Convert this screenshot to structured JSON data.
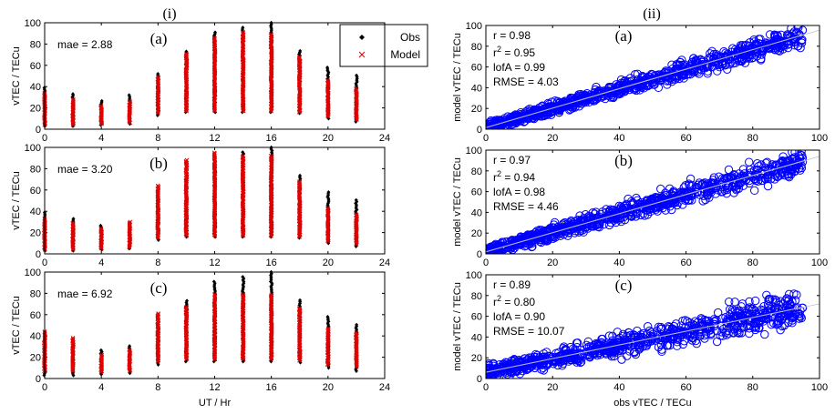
{
  "section_labels": {
    "left": "(i)",
    "right": "(ii)"
  },
  "chart_data": [
    {
      "type": "scatter",
      "panel": "(i)(a)",
      "sublabel": "(a)",
      "annotation": "mae = 2.88",
      "xlabel": "",
      "ylabel": "vTEC / TECu",
      "xlim": [
        0,
        24
      ],
      "ylim": [
        0,
        100
      ],
      "xticks": [
        0,
        4,
        8,
        12,
        16,
        20,
        24
      ],
      "yticks": [
        0,
        20,
        40,
        60,
        80,
        100
      ],
      "legend": {
        "placement": "top-right",
        "entries": [
          "Obs",
          "Model"
        ]
      },
      "series": [
        {
          "name": "Obs",
          "marker": "filled-diamond",
          "color": "#000000",
          "hours": [
            0,
            2,
            4,
            6,
            8,
            10,
            12,
            14,
            16,
            18,
            20,
            22
          ],
          "min": [
            3,
            3,
            4,
            5,
            13,
            16,
            16,
            16,
            16,
            15,
            10,
            7
          ],
          "max": [
            39,
            34,
            27,
            33,
            53,
            74,
            92,
            96,
            100,
            74,
            58,
            51
          ]
        },
        {
          "name": "Model",
          "marker": "x",
          "color": "#e00000",
          "hours": [
            0,
            2,
            4,
            6,
            8,
            10,
            12,
            14,
            16,
            18,
            20,
            22
          ],
          "min": [
            4,
            4,
            5,
            6,
            15,
            17,
            17,
            17,
            17,
            16,
            12,
            9
          ],
          "max": [
            34,
            28,
            22,
            26,
            49,
            71,
            86,
            91,
            89,
            68,
            46,
            38
          ]
        }
      ]
    },
    {
      "type": "scatter",
      "panel": "(i)(b)",
      "sublabel": "(b)",
      "annotation": "mae = 3.20",
      "xlabel": "",
      "ylabel": "vTEC / TECu",
      "xlim": [
        0,
        24
      ],
      "ylim": [
        0,
        100
      ],
      "xticks": [
        0,
        4,
        8,
        12,
        16,
        20,
        24
      ],
      "yticks": [
        0,
        20,
        40,
        60,
        80,
        100
      ],
      "series": [
        {
          "name": "Obs",
          "marker": "filled-diamond",
          "color": "#000000",
          "hours": [
            0,
            2,
            4,
            6,
            8,
            10,
            12,
            14,
            16,
            18,
            20,
            22
          ],
          "min": [
            3,
            3,
            4,
            5,
            13,
            16,
            16,
            16,
            16,
            15,
            10,
            7
          ],
          "max": [
            39,
            34,
            27,
            30,
            53,
            74,
            92,
            96,
            100,
            74,
            58,
            51
          ]
        },
        {
          "name": "Model",
          "marker": "x",
          "color": "#e00000",
          "hours": [
            0,
            2,
            4,
            6,
            8,
            10,
            12,
            14,
            16,
            18,
            20,
            22
          ],
          "min": [
            4,
            4,
            5,
            6,
            15,
            17,
            17,
            17,
            17,
            16,
            12,
            9
          ],
          "max": [
            33,
            29,
            24,
            30,
            64,
            88,
            95,
            92,
            92,
            68,
            43,
            37
          ]
        }
      ]
    },
    {
      "type": "scatter",
      "panel": "(i)(c)",
      "sublabel": "(c)",
      "annotation": "mae = 6.92",
      "xlabel": "UT / Hr",
      "ylabel": "vTEC / TECu",
      "xlim": [
        0,
        24
      ],
      "ylim": [
        0,
        100
      ],
      "xticks": [
        0,
        4,
        8,
        12,
        16,
        20,
        24
      ],
      "yticks": [
        0,
        20,
        40,
        60,
        80,
        100
      ],
      "series": [
        {
          "name": "Obs",
          "marker": "filled-diamond",
          "color": "#000000",
          "hours": [
            0,
            2,
            4,
            6,
            8,
            10,
            12,
            14,
            16,
            18,
            20,
            22
          ],
          "min": [
            3,
            3,
            4,
            5,
            13,
            16,
            16,
            16,
            16,
            15,
            10,
            7
          ],
          "max": [
            39,
            34,
            27,
            31,
            53,
            74,
            92,
            96,
            100,
            74,
            58,
            51
          ]
        },
        {
          "name": "Model",
          "marker": "x",
          "color": "#e00000",
          "hours": [
            0,
            2,
            4,
            6,
            8,
            10,
            12,
            14,
            16,
            18,
            20,
            22
          ],
          "min": [
            7,
            7,
            6,
            7,
            16,
            18,
            18,
            18,
            18,
            17,
            13,
            11
          ],
          "max": [
            44,
            38,
            22,
            27,
            61,
            67,
            79,
            79,
            79,
            66,
            47,
            43
          ]
        }
      ]
    },
    {
      "type": "scatter",
      "panel": "(ii)(a)",
      "sublabel": "(a)",
      "stats": [
        "r = 0.98",
        "r2 = 0.95",
        "lofA = 0.99",
        "RMSE = 4.03"
      ],
      "stat_parts": {
        "r": "r = 0.98",
        "r2_base": "r",
        "r2_sup": "2",
        "r2_val": " = 0.95",
        "lofA": "lofA = 0.99",
        "rmse": "RMSE = 4.03"
      },
      "xlabel": "",
      "ylabel": "model vTEC / TECu",
      "xlim": [
        0,
        100
      ],
      "ylim": [
        0,
        100
      ],
      "xticks": [
        0,
        20,
        40,
        60,
        80,
        100
      ],
      "yticks": [
        0,
        20,
        40,
        60,
        80,
        100
      ],
      "fit": {
        "slope": 0.94,
        "intercept": 1.5
      },
      "marker": "open-circle",
      "color": "#0000ff",
      "scatter_envelope": {
        "x_range": [
          0,
          95
        ],
        "spread": 6
      }
    },
    {
      "type": "scatter",
      "panel": "(ii)(b)",
      "sublabel": "(b)",
      "stats": [
        "r = 0.97",
        "r2 = 0.94",
        "lofA = 0.98",
        "RMSE = 4.46"
      ],
      "stat_parts": {
        "r": "r = 0.97",
        "r2_base": "r",
        "r2_sup": "2",
        "r2_val": " = 0.94",
        "lofA": "lofA = 0.98",
        "rmse": "RMSE = 4.46"
      },
      "xlabel": "",
      "ylabel": "model vTEC / TECu",
      "xlim": [
        0,
        100
      ],
      "ylim": [
        0,
        100
      ],
      "xticks": [
        0,
        20,
        40,
        60,
        80,
        100
      ],
      "yticks": [
        0,
        20,
        40,
        60,
        80,
        100
      ],
      "fit": {
        "slope": 0.92,
        "intercept": 2.0
      },
      "marker": "open-circle",
      "color": "#0000ff",
      "scatter_envelope": {
        "x_range": [
          0,
          95
        ],
        "spread": 7
      }
    },
    {
      "type": "scatter",
      "panel": "(ii)(c)",
      "sublabel": "(c)",
      "stats": [
        "r = 0.89",
        "r2 = 0.80",
        "lofA = 0.90",
        "RMSE = 10.07"
      ],
      "stat_parts": {
        "r": "r = 0.89",
        "r2_base": "r",
        "r2_sup": "2",
        "r2_val": " = 0.80",
        "lofA": "lofA = 0.90",
        "rmse": "RMSE = 10.07"
      },
      "xlabel": "obs vTEC / TECu",
      "ylabel": "model vTEC / TECu",
      "xlim": [
        0,
        100
      ],
      "ylim": [
        0,
        100
      ],
      "xticks": [
        0,
        20,
        40,
        60,
        80,
        100
      ],
      "yticks": [
        0,
        20,
        40,
        60,
        80,
        100
      ],
      "fit": {
        "slope": 0.66,
        "intercept": 6.0
      },
      "marker": "open-circle",
      "color": "#0000ff",
      "scatter_envelope": {
        "x_range": [
          0,
          95
        ],
        "spread": 9
      }
    }
  ]
}
